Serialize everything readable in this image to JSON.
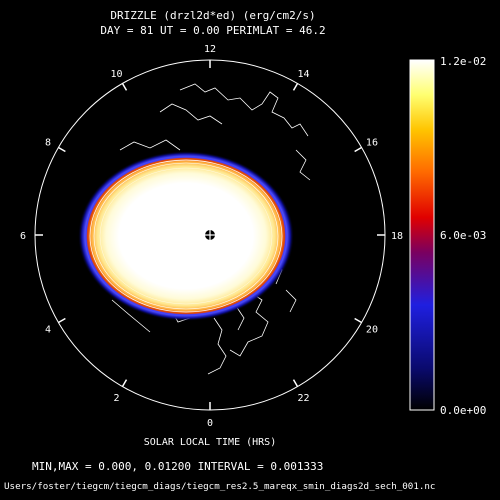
{
  "title_line1": "DRIZZLE (drzl2d*ed) (erg/cm2/s)",
  "title_line2": "DAY =  81   UT =  0.00   PERIMLAT =  46.2",
  "xlabel": "SOLAR LOCAL TIME (HRS)",
  "minmax_text": "MIN,MAX =      0.000,    0.01200 INTERVAL =   0.001333",
  "file_path": "Users/foster/tiegcm/tiegcm_diags/tiegcm_res2.5_mareqx_smin_diags2d_sech_001.nc",
  "chart_data": {
    "type": "polar-contour",
    "field": "DRIZZLE",
    "units": "erg/cm2/s",
    "day": 81,
    "ut": 0.0,
    "perimlat": 46.2,
    "min": 0.0,
    "max": 0.012,
    "interval": 0.001333,
    "colorbar_range": [
      0.0,
      0.012
    ],
    "colorbar_ticks": [
      "1.2e-02",
      "6.0e-03",
      "0.0e+00"
    ],
    "colormap": [
      "#000000",
      "#0a0a6e",
      "#1f1fe0",
      "#c00000",
      "#ff2000",
      "#ff8c00",
      "#ffd200",
      "#ffff80",
      "#ffffff"
    ],
    "local_time_labels": [
      {
        "hour": 12,
        "label": "12"
      },
      {
        "hour": 10,
        "label": "10"
      },
      {
        "hour": 8,
        "label": "8"
      },
      {
        "hour": 6,
        "label": "6"
      },
      {
        "hour": 4,
        "label": "4"
      },
      {
        "hour": 2,
        "label": "2"
      },
      {
        "hour": 0,
        "label": "0"
      },
      {
        "hour": 22,
        "label": "22"
      },
      {
        "hour": 20,
        "label": "20"
      },
      {
        "hour": 18,
        "label": "18"
      },
      {
        "hour": 16,
        "label": "16"
      },
      {
        "hour": 14,
        "label": "14"
      }
    ]
  }
}
